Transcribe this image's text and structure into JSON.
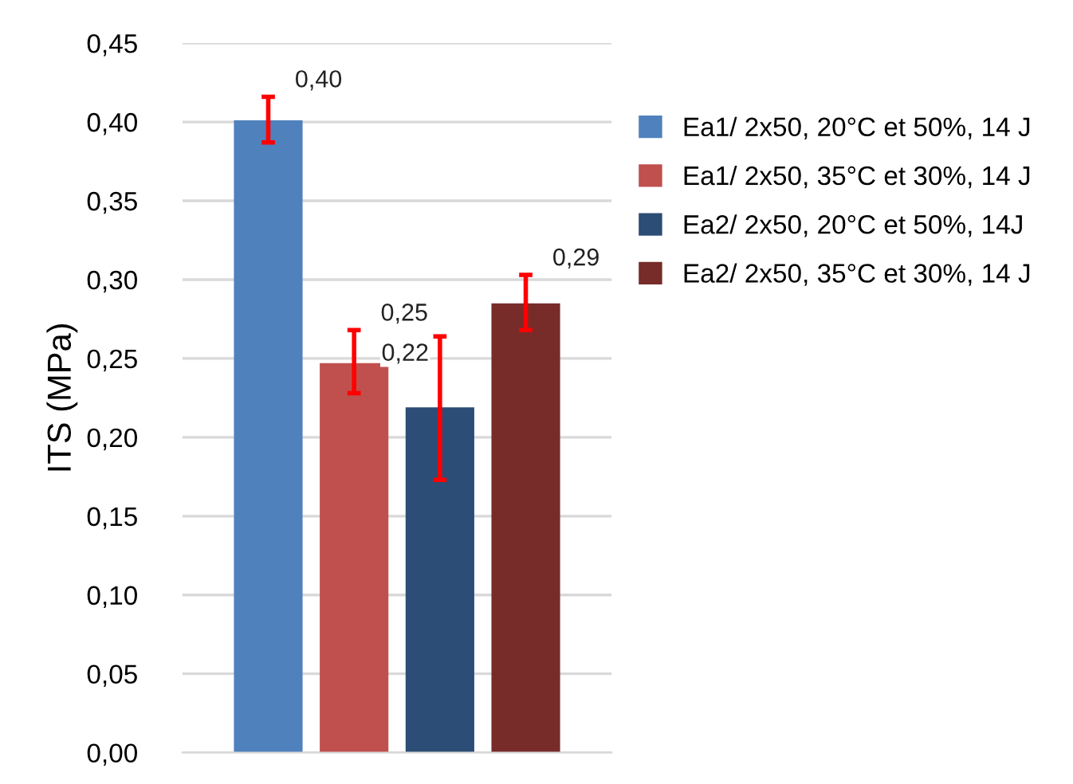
{
  "chart_data": {
    "type": "bar",
    "ylabel": "ITS (MPa)",
    "categories": [
      null
    ],
    "series": [
      {
        "name": "Ea1/ 2x50, 20°C et 50%, 14 J",
        "color": "#4f81bd",
        "values": [
          0.401
        ],
        "errors": [
          [
            0.387,
            0.416
          ]
        ],
        "value_labels": [
          "0,40"
        ]
      },
      {
        "name": "Ea1/ 2x50, 35°C et 30%, 14 J",
        "color": "#c0504d",
        "values": [
          0.247
        ],
        "errors": [
          [
            0.228,
            0.268
          ]
        ],
        "value_labels": [
          "0,25"
        ]
      },
      {
        "name": "Ea2/ 2x50, 20°C et 50%, 14J",
        "color": "#2c4d75",
        "values": [
          0.219
        ],
        "errors": [
          [
            0.173,
            0.264
          ]
        ],
        "value_labels": [
          "0,22"
        ]
      },
      {
        "name": "Ea2/ 2x50, 35°C et 30%, 14 J",
        "color": "#772c2a",
        "values": [
          0.285
        ],
        "errors": [
          [
            0.268,
            0.303
          ]
        ],
        "value_labels": [
          "0,29"
        ]
      }
    ],
    "ylim": [
      0,
      0.45
    ],
    "yticks": [
      {
        "value": 0,
        "label": "0,00"
      },
      {
        "value": 0.05,
        "label": "0,05"
      },
      {
        "value": 0.1,
        "label": "0,10"
      },
      {
        "value": 0.15,
        "label": "0,15"
      },
      {
        "value": 0.2,
        "label": "0,20"
      },
      {
        "value": 0.25,
        "label": "0,25"
      },
      {
        "value": 0.3,
        "label": "0,30"
      },
      {
        "value": 0.35,
        "label": "0,35"
      },
      {
        "value": 0.4,
        "label": "0,40"
      },
      {
        "value": 0.45,
        "label": "0,45"
      }
    ],
    "grid": "y",
    "legend": "top right"
  }
}
